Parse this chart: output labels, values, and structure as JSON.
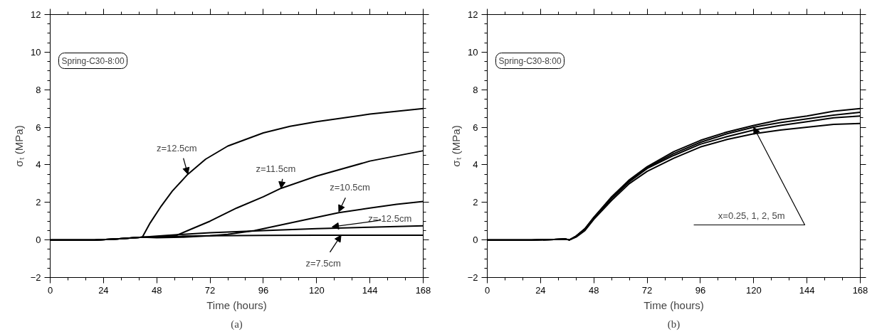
{
  "chart_data": [
    {
      "type": "line",
      "xlabel": "Time (hours)",
      "ylabel": "σₜ (MPa)",
      "xlim": [
        0,
        168
      ],
      "ylim": [
        -2,
        12
      ],
      "xticks": [
        0,
        24,
        48,
        72,
        96,
        120,
        144,
        168
      ],
      "yticks": [
        -2,
        0,
        2,
        4,
        6,
        8,
        10,
        12
      ],
      "grid": false,
      "marker": "none",
      "line_style": "solid",
      "series": [
        {
          "color": "#000000",
          "x": [
            0,
            10,
            20,
            30,
            41.5,
            45,
            50,
            55,
            62,
            70,
            80,
            96,
            108,
            120,
            144,
            168
          ],
          "values": [
            0,
            0,
            0,
            0.05,
            0.15,
            0.9,
            1.8,
            2.6,
            3.5,
            4.3,
            5.0,
            5.7,
            6.05,
            6.3,
            6.7,
            7.0
          ]
        },
        {
          "color": "#000000",
          "x": [
            0,
            20,
            30,
            41.5,
            48,
            57,
            64,
            72,
            84,
            96,
            104,
            120,
            144,
            168
          ],
          "values": [
            0,
            0,
            0.05,
            0.15,
            0.15,
            0.25,
            0.6,
            1.0,
            1.7,
            2.3,
            2.75,
            3.4,
            4.2,
            4.75
          ]
        },
        {
          "color": "#000000",
          "x": [
            0,
            20,
            30,
            41.5,
            48,
            60,
            72,
            80,
            92,
            104,
            116,
            130,
            144,
            156,
            168
          ],
          "values": [
            0,
            0,
            0.05,
            0.15,
            0.12,
            0.15,
            0.22,
            0.3,
            0.5,
            0.8,
            1.1,
            1.45,
            1.7,
            1.9,
            2.05
          ]
        },
        {
          "color": "#000000",
          "x": [
            0,
            20,
            30,
            41.5,
            48,
            60,
            72,
            96,
            120,
            144,
            168
          ],
          "values": [
            0,
            0,
            0.05,
            0.15,
            0.2,
            0.3,
            0.38,
            0.5,
            0.6,
            0.68,
            0.75
          ]
        },
        {
          "color": "#000000",
          "x": [
            0,
            20,
            30,
            41.5,
            48,
            60,
            72,
            96,
            120,
            144,
            168
          ],
          "values": [
            0,
            0,
            0.05,
            0.15,
            0.15,
            0.2,
            0.22,
            0.24,
            0.25,
            0.25,
            0.25
          ]
        }
      ],
      "annotations": [
        "Spring-C30-8:00",
        "(a)",
        {
          "text": "z=12.5cm",
          "x": 62,
          "y": 3.5
        },
        {
          "text": "z=11.5cm",
          "x": 104,
          "y": 2.75
        },
        {
          "text": "z=10.5cm",
          "x": 130,
          "y": 1.5
        },
        {
          "text": "z=-12.5cm",
          "x": 127,
          "y": 0.7
        },
        {
          "text": "z=7.5cm",
          "x": 131,
          "y": 0.25
        }
      ]
    },
    {
      "type": "line",
      "xlabel": "Time (hours)",
      "ylabel": "σₜ (MPa)",
      "xlim": [
        0,
        168
      ],
      "ylim": [
        -2,
        12
      ],
      "xticks": [
        0,
        24,
        48,
        72,
        96,
        120,
        144,
        168
      ],
      "yticks": [
        -2,
        0,
        2,
        4,
        6,
        8,
        10,
        12
      ],
      "grid": false,
      "marker": "none",
      "line_style": "solid",
      "series": [
        {
          "color": "#000000",
          "x": [
            0,
            20,
            30,
            35,
            37,
            40,
            44,
            48,
            56,
            64,
            72,
            84,
            96,
            108,
            120,
            132,
            144,
            156,
            168
          ],
          "values": [
            0,
            0,
            0.02,
            0.05,
            0,
            0.2,
            0.6,
            1.2,
            2.3,
            3.2,
            3.9,
            4.7,
            5.3,
            5.75,
            6.1,
            6.4,
            6.6,
            6.85,
            7.0
          ]
        },
        {
          "color": "#000000",
          "x": [
            0,
            20,
            30,
            35,
            37,
            40,
            44,
            48,
            56,
            64,
            72,
            84,
            96,
            108,
            120,
            132,
            144,
            156,
            168
          ],
          "values": [
            0,
            0,
            0.02,
            0.05,
            0,
            0.2,
            0.6,
            1.2,
            2.25,
            3.15,
            3.85,
            4.6,
            5.2,
            5.65,
            6.0,
            6.25,
            6.45,
            6.65,
            6.8
          ]
        },
        {
          "color": "#000000",
          "x": [
            0,
            20,
            30,
            35,
            37,
            40,
            44,
            48,
            56,
            64,
            72,
            84,
            96,
            108,
            120,
            132,
            144,
            156,
            168
          ],
          "values": [
            0,
            0,
            0.02,
            0.05,
            0,
            0.2,
            0.55,
            1.15,
            2.2,
            3.1,
            3.8,
            4.5,
            5.1,
            5.5,
            5.85,
            6.1,
            6.3,
            6.5,
            6.6
          ]
        },
        {
          "color": "#000000",
          "x": [
            0,
            20,
            30,
            35,
            37,
            40,
            44,
            48,
            56,
            64,
            72,
            84,
            96,
            108,
            120,
            132,
            144,
            156,
            168
          ],
          "values": [
            0,
            0,
            0.02,
            0.05,
            0,
            0.15,
            0.5,
            1.1,
            2.1,
            3.0,
            3.65,
            4.35,
            4.95,
            5.35,
            5.65,
            5.85,
            6.0,
            6.15,
            6.2
          ]
        }
      ],
      "annotations": [
        "Spring-C30-8:00",
        "(b)",
        {
          "text": "x=0.25, 1, 2, 5m",
          "x": 120,
          "y": 6.0
        }
      ]
    }
  ]
}
